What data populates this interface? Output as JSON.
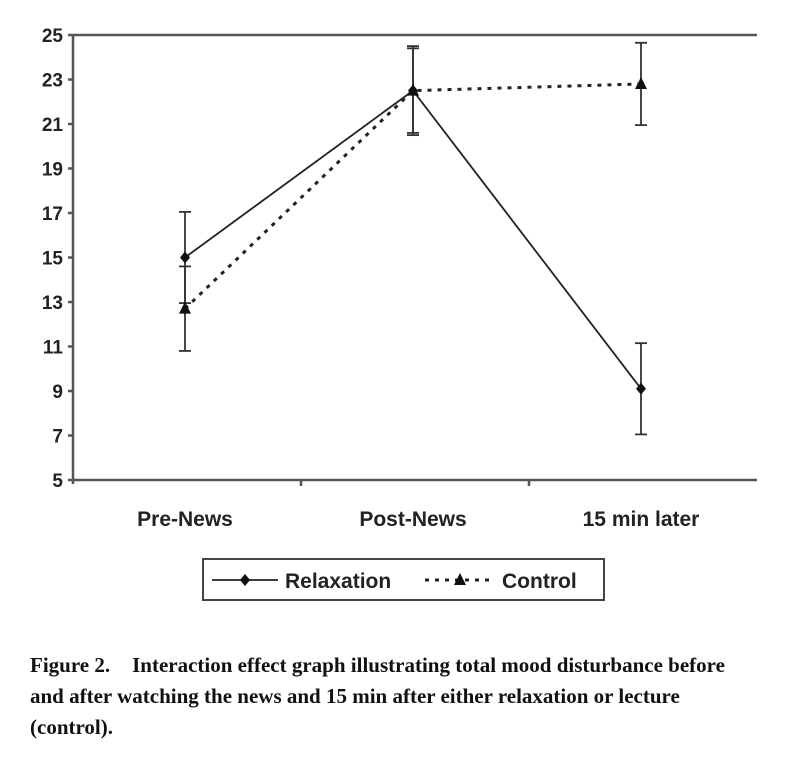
{
  "chart_data": {
    "type": "line",
    "categories": [
      "Pre-News",
      "Post-News",
      "15 min later"
    ],
    "ylim": [
      5,
      25
    ],
    "yticks": [
      5,
      7,
      9,
      11,
      13,
      15,
      17,
      19,
      21,
      23,
      25
    ],
    "grid": false,
    "legend": "bottom",
    "series": [
      {
        "name": "Relaxation",
        "values": [
          15.0,
          22.5,
          9.1
        ],
        "errors": [
          2.05,
          2.0,
          2.05
        ],
        "marker": "diamond",
        "line": "solid"
      },
      {
        "name": "Control",
        "values": [
          12.7,
          22.5,
          22.8
        ],
        "errors": [
          1.9,
          1.9,
          1.85
        ],
        "marker": "triangle",
        "line": "dotted"
      }
    ]
  },
  "caption": {
    "label": "Figure 2.",
    "text": "Interaction effect graph illustrating total mood disturbance before and after watching the news and 15 min after either relaxation or lecture (control)."
  }
}
